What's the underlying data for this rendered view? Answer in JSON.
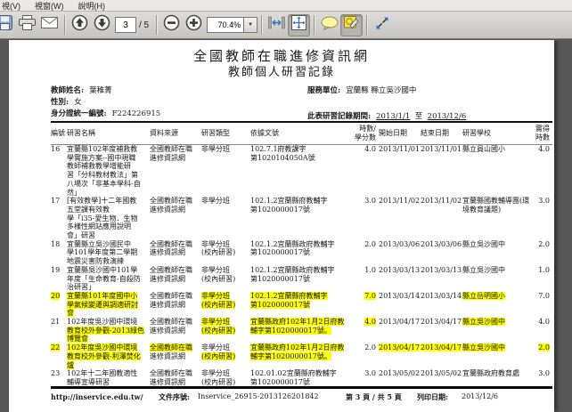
{
  "colors": {
    "highlight": "#ffff00",
    "viewer_bg": "#565656",
    "accent_blue": "#2f6fbe"
  },
  "menu": {
    "items": [
      "視(V)",
      "視窗(W)",
      "說明(H)"
    ]
  },
  "toolbar": {
    "page_current": "3",
    "page_total_text": "/ 5",
    "zoom_value": "70.4%",
    "icons": [
      "save-icon",
      "print-icon",
      "email-icon",
      "page-up-icon",
      "page-down-icon",
      "zoom-out-icon",
      "zoom-in-icon",
      "zoom-dropdown-icon",
      "fit-width-icon",
      "fit-page-icon",
      "comment-icon",
      "highlight-tool-icon",
      "fullscreen-icon"
    ]
  },
  "page": {
    "title": "全國教師在職進修資訊網",
    "subtitle": "教師個人研習記錄",
    "info": {
      "name_label": "教師姓名:",
      "name_value": "葉稚菁",
      "gender_label": "性別:",
      "gender_value": "女",
      "id_label": "身分證統一編號:",
      "id_value": "F224226915",
      "unit_label": "服務單位:",
      "unit_value": "宜蘭縣 縣立吳沙國中",
      "period_label": "此表研習記錄期間:",
      "period_start": "2013/1/1",
      "period_to": "至",
      "period_end": "2013/12/6"
    },
    "table": {
      "headers": [
        [
          "編號"
        ],
        [
          "研習名稱"
        ],
        [
          "資料來源"
        ],
        [
          "研習類型"
        ],
        [
          "依據文號"
        ],
        [
          "時數/",
          "學分數"
        ],
        [
          "開始日期"
        ],
        [
          "結束日期"
        ],
        [
          "研習學校"
        ],
        [
          "實得",
          "時數"
        ]
      ],
      "rows": [
        {
          "cells": [
            [
              {
                "t": "16"
              }
            ],
            [
              {
                "t": "宜蘭縣102年度補救教"
              },
              {
                "t": "學實施方案--國中現職"
              },
              {
                "t": "教師補救教學增能研"
              },
              {
                "t": "習「分科教材教法」第"
              },
              {
                "t": "八場次「非基本學科-自"
              },
              {
                "t": "然」"
              }
            ],
            [
              {
                "t": "全國教師在職"
              },
              {
                "t": "進修資訊網"
              }
            ],
            [
              {
                "t": "非學分班"
              }
            ],
            [
              {
                "t": "102.7.1府教課字"
              },
              {
                "t": "第1020104050A號"
              }
            ],
            [
              {
                "t": "4.0"
              }
            ],
            [
              {
                "t": "2013/11/01"
              }
            ],
            [
              {
                "t": "2013/11/01"
              }
            ],
            [
              {
                "t": "縣立員山國小"
              }
            ],
            [
              {
                "t": "4.0"
              }
            ]
          ]
        },
        {
          "cells": [
            [
              {
                "t": "17"
              }
            ],
            [
              {
                "t": "[有效教學]十二年國教"
              },
              {
                "t": "五堂課有效教"
              },
              {
                "t": "學「i35-愛生物．生物"
              },
              {
                "t": "多樣性網站應用說明"
              },
              {
                "t": "會」研習"
              }
            ],
            [
              {
                "t": "全國教師在職"
              },
              {
                "t": "進修資訊網"
              }
            ],
            [
              {
                "t": "非學分班"
              }
            ],
            [
              {
                "t": "102.1.2宜蘭縣府教輔字"
              },
              {
                "t": "第1020000017號"
              }
            ],
            [
              {
                "t": "3.0"
              }
            ],
            [
              {
                "t": "2013/11/02"
              }
            ],
            [
              {
                "t": "2013/11/02"
              }
            ],
            [
              {
                "t": "宜蘭縣國教輔導團(環"
              },
              {
                "t": "境教育議題)"
              }
            ],
            [
              {
                "t": "3.0"
              }
            ]
          ]
        },
        {
          "cells": [
            [
              {
                "t": "18"
              }
            ],
            [
              {
                "t": "宜蘭縣立吳沙國民中"
              },
              {
                "t": "學101學年度第二學期"
              },
              {
                "t": "地震災害防救演練"
              }
            ],
            [
              {
                "t": "全國教師在職"
              },
              {
                "t": "進修資訊網"
              }
            ],
            [
              {
                "t": "非學分班"
              },
              {
                "t": "(校內研習)"
              }
            ],
            [
              {
                "t": "102.1.2宜蘭縣政府教輔字"
              },
              {
                "t": "第1020000017號"
              }
            ],
            [
              {
                "t": "2.0"
              }
            ],
            [
              {
                "t": "2013/03/06"
              }
            ],
            [
              {
                "t": "2013/03/06"
              }
            ],
            [
              {
                "t": "縣立吳沙國中"
              }
            ],
            [
              {
                "t": "2.0"
              }
            ]
          ]
        },
        {
          "cells": [
            [
              {
                "t": "19"
              }
            ],
            [
              {
                "t": "宜蘭縣吳沙國中101學"
              },
              {
                "t": "年度「生命教育-自殺防"
              },
              {
                "t": "治研習」"
              }
            ],
            [
              {
                "t": "全國教師在職"
              },
              {
                "t": "進修資訊網"
              }
            ],
            [
              {
                "t": "非學分班"
              },
              {
                "t": "(校內研習)"
              }
            ],
            [
              {
                "t": "102.1.2宜蘭縣政府教輔字"
              },
              {
                "t": "第1020000017號"
              }
            ],
            [
              {
                "t": "1.0"
              }
            ],
            [
              {
                "t": "2013/03/13"
              }
            ],
            [
              {
                "t": "2013/03/13"
              }
            ],
            [
              {
                "t": "縣立吳沙國中"
              }
            ],
            [
              {
                "t": "1.0"
              }
            ]
          ]
        },
        {
          "cells": [
            [
              {
                "t": "20",
                "hl": true
              }
            ],
            [
              {
                "t": "宜蘭縣101年度國中小",
                "hl": true
              },
              {
                "t": "學氣候變遷與調適研討",
                "hl": true
              },
              {
                "t": "會",
                "hl": true
              }
            ],
            [
              {
                "t": "全國教師在職"
              },
              {
                "t": "進修資訊網"
              }
            ],
            [
              {
                "t": "非學分班",
                "hl": true
              },
              {
                "t": "(校內研習)",
                "hl": true
              }
            ],
            [
              {
                "t": "102.1.2宜蘭縣府教輔字",
                "hl": true
              },
              {
                "t": "第1020000017號",
                "hl": true
              }
            ],
            [
              {
                "t": "7.0",
                "hl": true
              }
            ],
            [
              {
                "t": "2013/03/14"
              }
            ],
            [
              {
                "t": "2013/03/14"
              }
            ],
            [
              {
                "t": "縣立岳明國小",
                "hl": true
              }
            ],
            [
              {
                "t": "7.0"
              }
            ]
          ]
        },
        {
          "cells": [
            [
              {
                "t": "21"
              }
            ],
            [
              {
                "t": "102年度吳沙國中環境"
              },
              {
                "t": "教育校外參觀-2013綠色",
                "hl": true
              },
              {
                "t": "博覽會",
                "hl": true
              }
            ],
            [
              {
                "t": "全國教師在職"
              },
              {
                "t": "進修資訊網"
              }
            ],
            [
              {
                "t": "非學分班",
                "hl": true
              },
              {
                "t": "(校內研習)",
                "hl": true
              }
            ],
            [
              {
                "t": "宜蘭縣政府102年1月2日府教",
                "hl": true
              },
              {
                "t": "輔字第1020000017號。",
                "hl": true
              }
            ],
            [
              {
                "t": "4.0",
                "hl": true
              }
            ],
            [
              {
                "t": "2013/04/17"
              }
            ],
            [
              {
                "t": "2013/04/17"
              }
            ],
            [
              {
                "t": "縣立吳沙國中",
                "hl": true
              }
            ],
            [
              {
                "t": "4.0"
              }
            ]
          ]
        },
        {
          "cells": [
            [
              {
                "t": "22",
                "hl": true
              }
            ],
            [
              {
                "t": "102年度吳沙國中環境",
                "hl": true
              },
              {
                "t": "教育校外參觀-利澤焚化",
                "hl": true
              },
              {
                "t": "爐",
                "hl": true
              }
            ],
            [
              {
                "t": "全國教師在職",
                "hl": true
              },
              {
                "t": "進修資訊網"
              }
            ],
            [
              {
                "t": "非學分班"
              },
              {
                "t": "(校內研習)",
                "hl": true
              }
            ],
            [
              {
                "t": "宜蘭縣政府102年1月2日府教",
                "hl": true
              },
              {
                "t": "輔字第1020000017號。",
                "hl": true
              }
            ],
            [
              {
                "t": "2.0"
              }
            ],
            [
              {
                "t": "2013/04/17",
                "hl": true
              }
            ],
            [
              {
                "t": "2013/04/17",
                "hl": true
              }
            ],
            [
              {
                "t": "縣立吳沙國中",
                "hl": true
              }
            ],
            [
              {
                "t": "2.0",
                "hl": true
              }
            ]
          ]
        },
        {
          "cells": [
            [
              {
                "t": "23"
              }
            ],
            [
              {
                "t": "102年十二年國教適性"
              },
              {
                "t": "輔導宣導研習"
              }
            ],
            [
              {
                "t": "全國教師在職"
              },
              {
                "t": "進修資訊網"
              }
            ],
            [
              {
                "t": "非學分班"
              },
              {
                "t": "(校內研習)"
              }
            ],
            [
              {
                "t": "102.01.02宜蘭縣府教輔字"
              },
              {
                "t": "第1020000017號"
              }
            ],
            [
              {
                "t": "3.0"
              }
            ],
            [
              {
                "t": "2013/05/02"
              }
            ],
            [
              {
                "t": "2013/05/02"
              }
            ],
            [
              {
                "t": "宜蘭縣政府教育處"
              }
            ],
            [
              {
                "t": "3.0"
              }
            ]
          ]
        }
      ]
    },
    "footer": {
      "url": "http://inservice.edu.tw/",
      "doc_label": "文件序號:",
      "doc_value": "Inservice_26915-2013126201842",
      "page_info": "第 3 頁 / 共 5 頁",
      "print_label": "列印日期:",
      "print_value": "2013/12/6"
    }
  }
}
